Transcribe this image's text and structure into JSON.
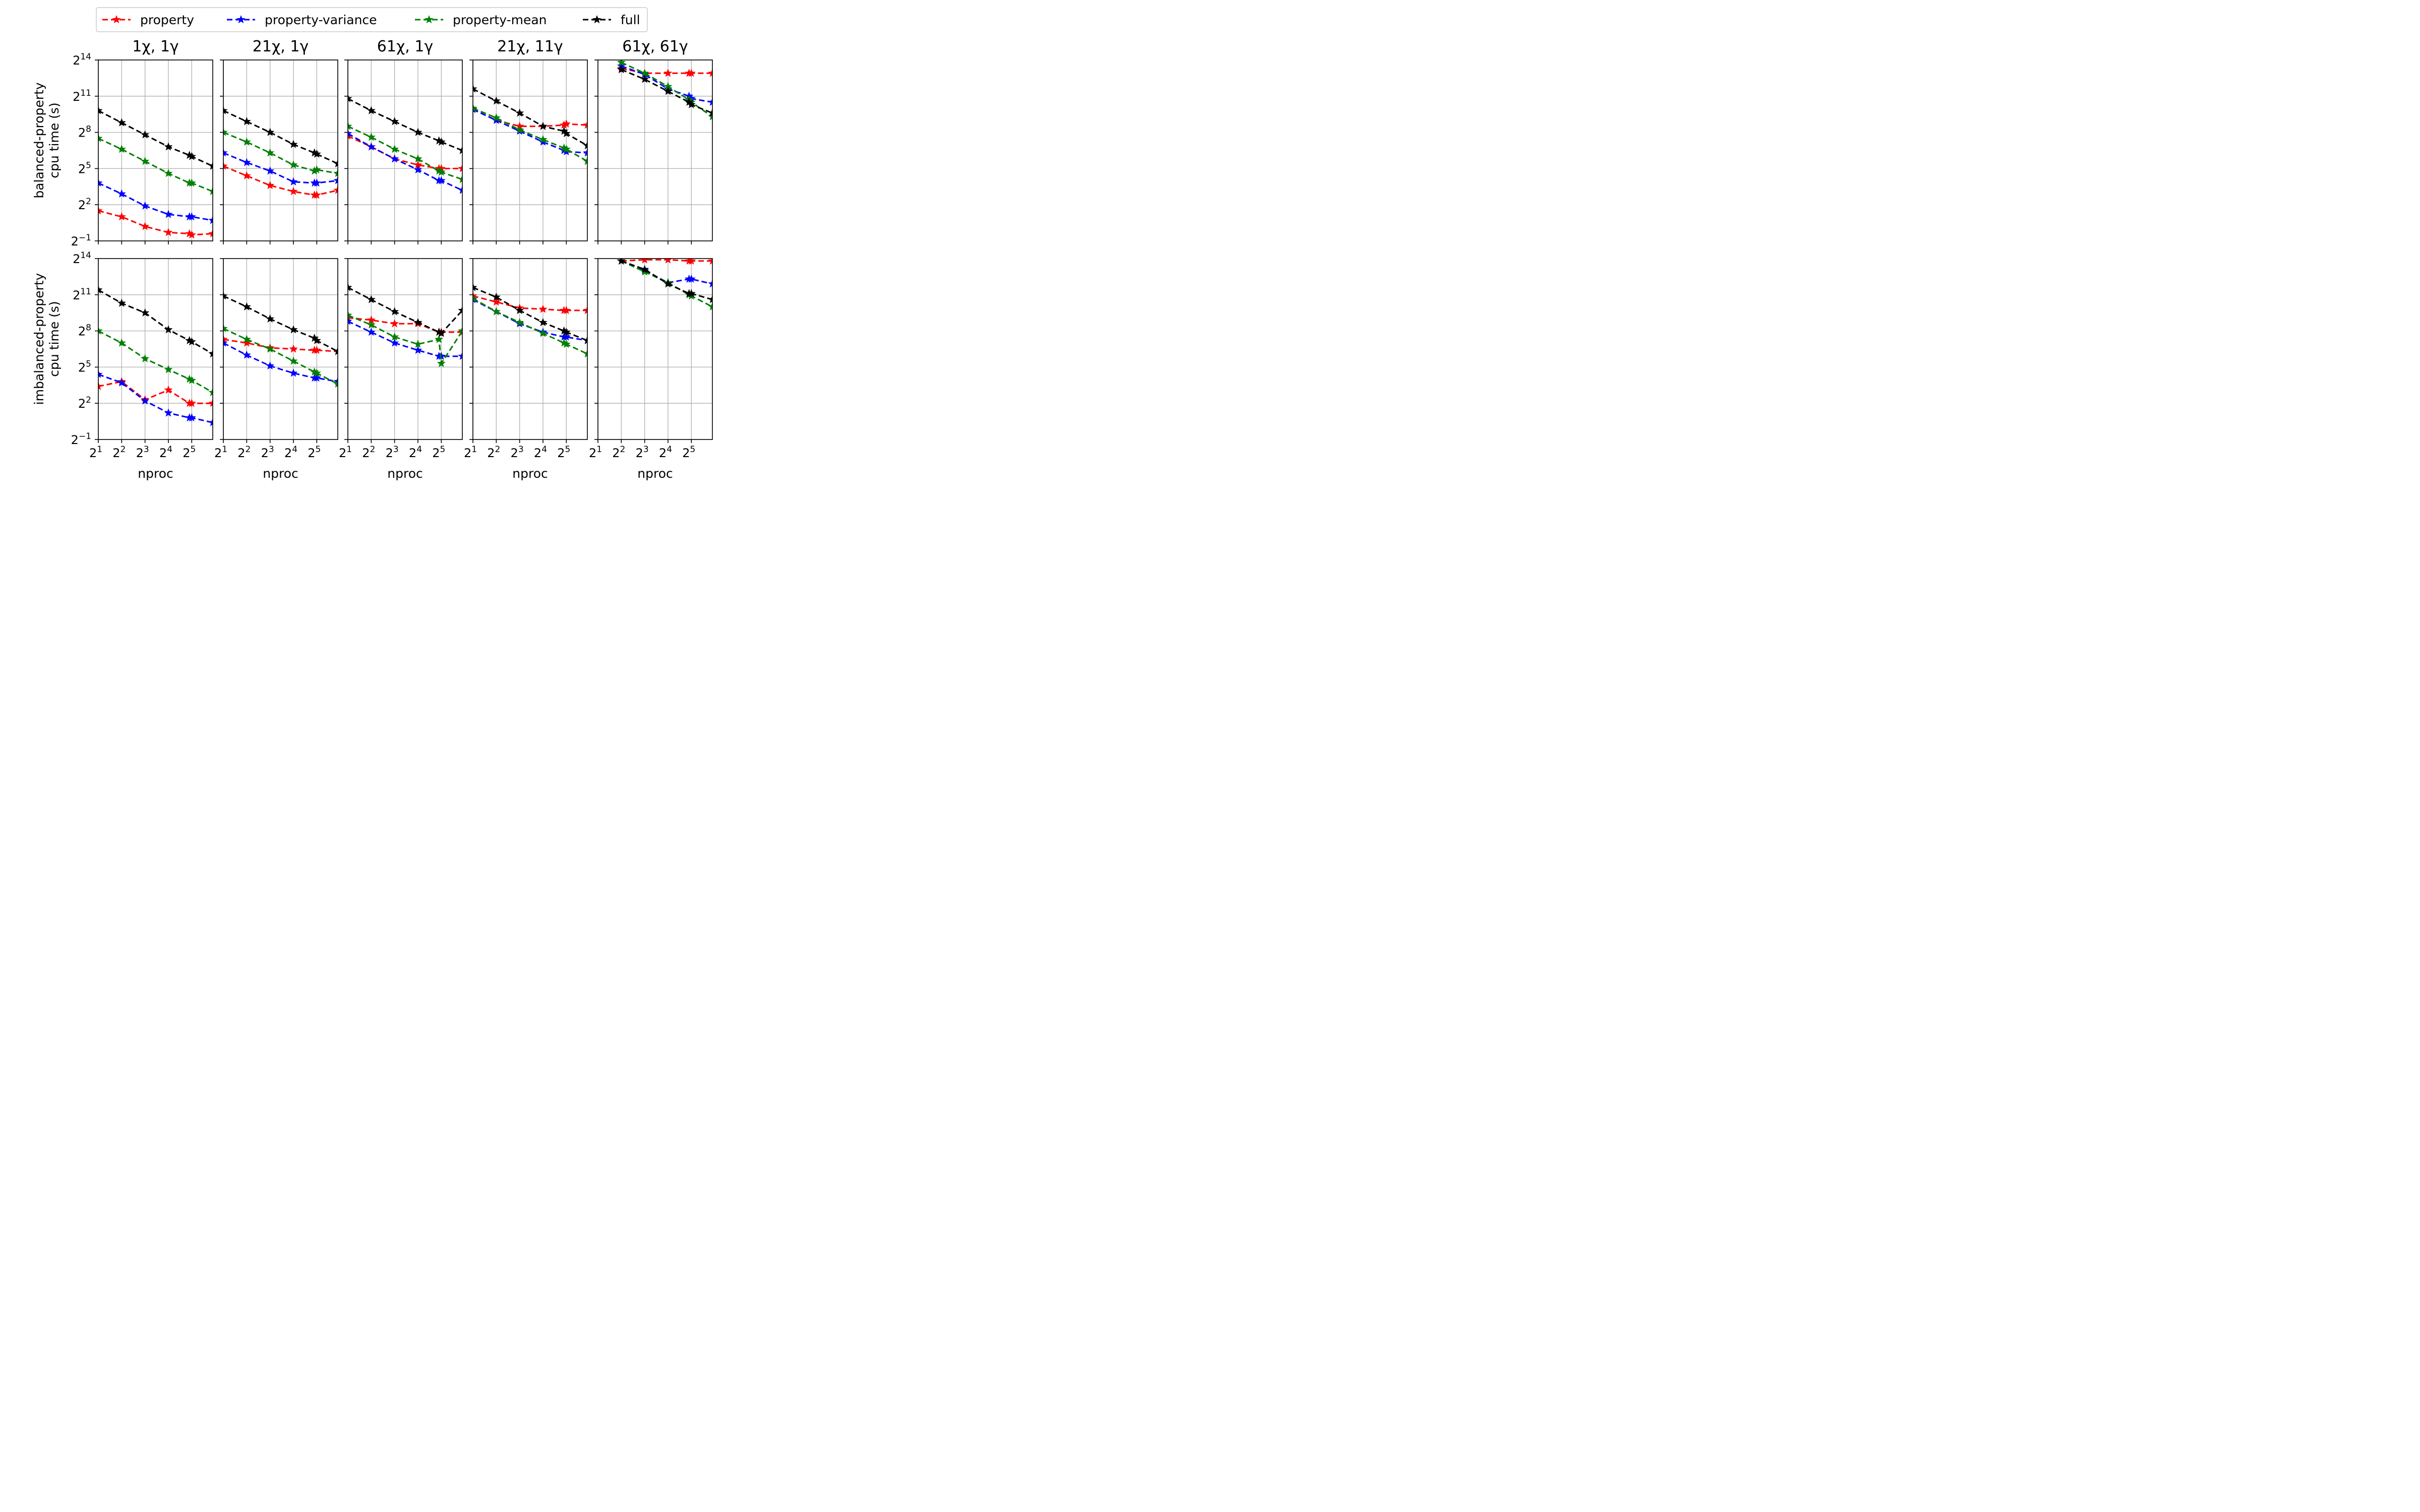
{
  "legend": {
    "entries": [
      {
        "label": "property",
        "color": "#ff0000"
      },
      {
        "label": "property-variance",
        "color": "#0000ff"
      },
      {
        "label": "property-mean",
        "color": "#008000"
      },
      {
        "label": "full",
        "color": "#000000"
      }
    ],
    "placement": "top-center",
    "marker": "star",
    "line_style": "dashed"
  },
  "panel_titles": [
    "1χ, 1γ",
    "21χ, 1γ",
    "61χ, 1γ",
    "21χ, 11γ",
    "61χ, 61γ"
  ],
  "row_ylabels": [
    [
      "balanced-property",
      "cpu time (s)"
    ],
    [
      "imbalanced-property",
      "cpu time (s)"
    ]
  ],
  "xlabel": "nproc",
  "x_tick_labels": [
    {
      "base": "2",
      "exp": "1"
    },
    {
      "base": "2",
      "exp": "2"
    },
    {
      "base": "2",
      "exp": "3"
    },
    {
      "base": "2",
      "exp": "4"
    },
    {
      "base": "2",
      "exp": "5"
    }
  ],
  "y_tick_labels": [
    {
      "base": "2",
      "exp": "14"
    },
    {
      "base": "2",
      "exp": "11"
    },
    {
      "base": "2",
      "exp": "8"
    },
    {
      "base": "2",
      "exp": "5"
    },
    {
      "base": "2",
      "exp": "2"
    },
    {
      "base": "2",
      "exp": "−1"
    }
  ],
  "chart_data": {
    "type": "line",
    "x_scale": "log2",
    "y_scale": "log2",
    "x_log2_range": [
      1,
      5.9
    ],
    "y_log2_range": [
      -1,
      14
    ],
    "x_log2_ticks": [
      1,
      2,
      3,
      4,
      5
    ],
    "y_log2_ticks": [
      14,
      11,
      8,
      5,
      2,
      -1
    ],
    "grid": true,
    "x_log2": [
      1,
      2,
      3,
      4,
      4.9,
      5,
      5.9
    ],
    "series_names": [
      "property",
      "property-variance",
      "property-mean",
      "full"
    ],
    "panels": [
      {
        "row": 0,
        "col": 0,
        "series": [
          {
            "name": "property",
            "values_log2": [
              1.5,
              1.0,
              0.2,
              -0.3,
              -0.4,
              -0.5,
              -0.4
            ]
          },
          {
            "name": "property-variance",
            "values_log2": [
              3.8,
              2.9,
              1.9,
              1.2,
              1.0,
              1.0,
              0.7
            ]
          },
          {
            "name": "property-mean",
            "values_log2": [
              7.5,
              6.6,
              5.6,
              4.6,
              3.8,
              3.8,
              3.1
            ]
          },
          {
            "name": "full",
            "values_log2": [
              9.8,
              8.8,
              7.8,
              6.8,
              6.1,
              6.0,
              5.2
            ]
          }
        ]
      },
      {
        "row": 0,
        "col": 1,
        "series": [
          {
            "name": "property",
            "values_log2": [
              5.2,
              4.4,
              3.6,
              3.1,
              2.8,
              2.8,
              3.2
            ]
          },
          {
            "name": "property-variance",
            "values_log2": [
              6.3,
              5.5,
              4.8,
              3.9,
              3.8,
              3.8,
              4.0
            ]
          },
          {
            "name": "property-mean",
            "values_log2": [
              8.0,
              7.2,
              6.3,
              5.3,
              4.8,
              4.9,
              4.6
            ]
          },
          {
            "name": "full",
            "values_log2": [
              9.8,
              8.9,
              8.0,
              7.0,
              6.3,
              6.2,
              5.4
            ]
          }
        ]
      },
      {
        "row": 0,
        "col": 2,
        "series": [
          {
            "name": "property",
            "values_log2": [
              7.7,
              6.8,
              5.8,
              5.3,
              5.0,
              5.0,
              5.0
            ]
          },
          {
            "name": "property-variance",
            "values_log2": [
              7.9,
              6.8,
              5.8,
              4.9,
              4.0,
              4.0,
              3.2
            ]
          },
          {
            "name": "property-mean",
            "values_log2": [
              8.5,
              7.6,
              6.6,
              5.8,
              4.8,
              4.7,
              4.1
            ]
          },
          {
            "name": "full",
            "values_log2": [
              10.8,
              9.8,
              8.9,
              8.0,
              7.3,
              7.2,
              6.5
            ]
          }
        ]
      },
      {
        "row": 0,
        "col": 3,
        "series": [
          {
            "name": "property",
            "values_log2": [
              9.9,
              9.0,
              8.5,
              8.5,
              8.6,
              8.7,
              8.6
            ]
          },
          {
            "name": "property-variance",
            "values_log2": [
              9.9,
              9.0,
              8.1,
              7.2,
              6.5,
              6.4,
              6.3
            ]
          },
          {
            "name": "property-mean",
            "values_log2": [
              10.0,
              9.2,
              8.2,
              7.4,
              6.7,
              6.6,
              5.6
            ]
          },
          {
            "name": "full",
            "values_log2": [
              11.6,
              10.6,
              9.6,
              8.5,
              8.1,
              7.9,
              6.9
            ]
          }
        ]
      },
      {
        "row": 0,
        "col": 4,
        "series": [
          {
            "name": "property",
            "values_log2": [
              null,
              13.3,
              12.9,
              12.9,
              12.9,
              12.9,
              12.9
            ]
          },
          {
            "name": "property-variance",
            "values_log2": [
              null,
              13.5,
              12.8,
              11.6,
              11.0,
              10.8,
              10.5
            ]
          },
          {
            "name": "property-mean",
            "values_log2": [
              null,
              13.8,
              12.9,
              11.8,
              10.7,
              10.5,
              9.3
            ]
          },
          {
            "name": "full",
            "values_log2": [
              null,
              13.2,
              12.4,
              11.4,
              10.5,
              10.3,
              9.6
            ]
          }
        ]
      },
      {
        "row": 1,
        "col": 0,
        "series": [
          {
            "name": "property",
            "values_log2": [
              3.4,
              3.8,
              2.3,
              3.1,
              2.0,
              2.0,
              2.0
            ]
          },
          {
            "name": "property-variance",
            "values_log2": [
              4.4,
              3.7,
              2.2,
              1.2,
              0.8,
              0.8,
              0.4
            ]
          },
          {
            "name": "property-mean",
            "values_log2": [
              8.0,
              7.0,
              5.7,
              4.8,
              4.0,
              3.9,
              2.9
            ]
          },
          {
            "name": "full",
            "values_log2": [
              11.4,
              10.3,
              9.5,
              8.1,
              7.2,
              7.1,
              6.1
            ]
          }
        ]
      },
      {
        "row": 1,
        "col": 1,
        "series": [
          {
            "name": "property",
            "values_log2": [
              7.3,
              7.0,
              6.6,
              6.5,
              6.4,
              6.4,
              6.3
            ]
          },
          {
            "name": "property-variance",
            "values_log2": [
              7.0,
              6.0,
              5.1,
              4.5,
              4.1,
              4.1,
              3.8
            ]
          },
          {
            "name": "property-mean",
            "values_log2": [
              8.2,
              7.3,
              6.5,
              5.5,
              4.6,
              4.5,
              3.6
            ]
          },
          {
            "name": "full",
            "values_log2": [
              10.9,
              10.0,
              9.0,
              8.1,
              7.4,
              7.2,
              6.3
            ]
          }
        ]
      },
      {
        "row": 1,
        "col": 2,
        "series": [
          {
            "name": "property",
            "values_log2": [
              9.1,
              8.9,
              8.6,
              8.6,
              7.9,
              7.9,
              7.9
            ]
          },
          {
            "name": "property-variance",
            "values_log2": [
              8.8,
              7.9,
              7.0,
              6.4,
              5.9,
              5.9,
              5.9
            ]
          },
          {
            "name": "property-mean",
            "values_log2": [
              9.3,
              8.5,
              7.5,
              6.9,
              7.3,
              5.3,
              8.0
            ]
          },
          {
            "name": "full",
            "values_log2": [
              11.6,
              10.6,
              9.6,
              8.7,
              7.9,
              7.8,
              9.7
            ]
          }
        ]
      },
      {
        "row": 1,
        "col": 3,
        "series": [
          {
            "name": "property",
            "values_log2": [
              10.9,
              10.4,
              9.9,
              9.8,
              9.7,
              9.7,
              9.7
            ]
          },
          {
            "name": "property-variance",
            "values_log2": [
              10.6,
              9.6,
              8.6,
              7.9,
              7.5,
              7.5,
              7.2
            ]
          },
          {
            "name": "property-mean",
            "values_log2": [
              10.7,
              9.6,
              8.7,
              7.8,
              7.0,
              6.9,
              6.1
            ]
          },
          {
            "name": "full",
            "values_log2": [
              11.6,
              10.8,
              9.7,
              8.7,
              8.0,
              7.9,
              7.2
            ]
          }
        ]
      },
      {
        "row": 1,
        "col": 4,
        "series": [
          {
            "name": "property",
            "values_log2": [
              null,
              13.8,
              13.9,
              13.9,
              13.8,
              13.8,
              13.8
            ]
          },
          {
            "name": "property-variance",
            "values_log2": [
              null,
              13.8,
              13.0,
              12.0,
              12.3,
              12.3,
              11.9
            ]
          },
          {
            "name": "property-mean",
            "values_log2": [
              null,
              13.8,
              12.9,
              12.0,
              11.0,
              10.9,
              10.0
            ]
          },
          {
            "name": "full",
            "values_log2": [
              null,
              13.8,
              13.1,
              11.9,
              11.1,
              11.1,
              10.6
            ]
          }
        ]
      }
    ]
  }
}
